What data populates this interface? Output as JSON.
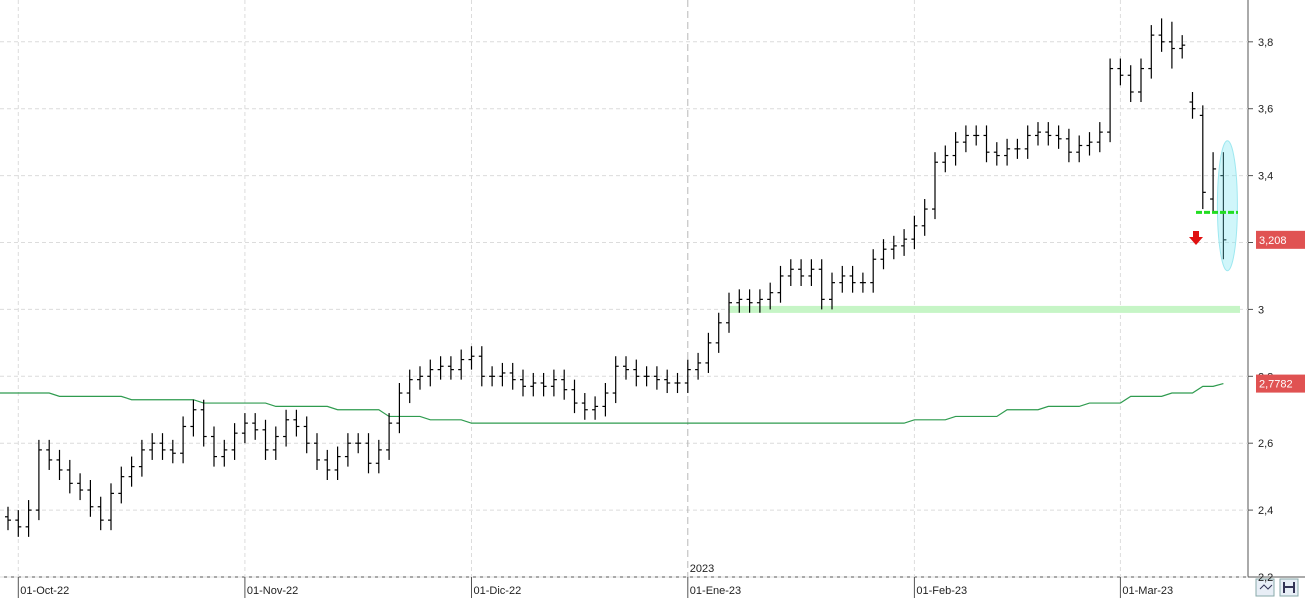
{
  "chart_data": {
    "type": "ohlc",
    "categories": [
      null,
      "01-Oct-22",
      null,
      null,
      null,
      null,
      null,
      null,
      null,
      null,
      null,
      null,
      null,
      null,
      null,
      null,
      null,
      null,
      null,
      null,
      null,
      null,
      null,
      "01-Nov-22",
      null,
      null,
      null,
      null,
      null,
      null,
      null,
      null,
      null,
      null,
      null,
      null,
      null,
      null,
      null,
      null,
      null,
      null,
      null,
      null,
      null,
      "01-Dic-22",
      null,
      null,
      null,
      null,
      null,
      null,
      null,
      null,
      null,
      null,
      null,
      null,
      null,
      null,
      null,
      null,
      null,
      null,
      null,
      null,
      "01-Ene-23",
      null,
      null,
      null,
      null,
      null,
      null,
      null,
      null,
      null,
      null,
      null,
      null,
      null,
      null,
      null,
      null,
      null,
      null,
      null,
      null,
      null,
      "01-Feb-23",
      null,
      null,
      null,
      null,
      null,
      null,
      null,
      null,
      null,
      null,
      null,
      null,
      null,
      null,
      null,
      null,
      null,
      null,
      null,
      "01-Mar-23",
      null,
      null,
      null,
      null,
      null,
      null,
      null,
      null,
      null,
      null
    ],
    "open": [
      2.38,
      2.37,
      2.35,
      2.4,
      2.58,
      2.55,
      2.52,
      2.48,
      2.46,
      2.41,
      2.37,
      2.45,
      2.5,
      2.53,
      2.58,
      2.6,
      2.58,
      2.57,
      2.65,
      2.7,
      2.62,
      2.56,
      2.58,
      2.63,
      2.66,
      2.64,
      2.58,
      2.62,
      2.67,
      2.65,
      2.6,
      2.55,
      2.52,
      2.56,
      2.6,
      2.6,
      2.54,
      2.58,
      2.66,
      2.75,
      2.79,
      2.8,
      2.82,
      2.83,
      2.82,
      2.85,
      2.86,
      2.8,
      2.8,
      2.81,
      2.79,
      2.77,
      2.78,
      2.77,
      2.79,
      2.76,
      2.72,
      2.7,
      2.71,
      2.75,
      2.83,
      2.82,
      2.8,
      2.8,
      2.79,
      2.78,
      2.78,
      2.82,
      2.84,
      2.9,
      2.96,
      3.02,
      3.03,
      3.02,
      3.03,
      3.05,
      3.1,
      3.12,
      3.1,
      3.12,
      3.03,
      3.08,
      3.1,
      3.08,
      3.08,
      3.15,
      3.18,
      3.19,
      3.21,
      3.25,
      3.3,
      3.44,
      3.46,
      3.5,
      3.52,
      3.52,
      3.47,
      3.46,
      3.48,
      3.48,
      3.52,
      3.53,
      3.52,
      3.51,
      3.47,
      3.49,
      3.5,
      3.53,
      3.72,
      3.7,
      3.65,
      3.72,
      3.82,
      3.8,
      3.78,
      3.62,
      3.58,
      3.33,
      3.4
    ],
    "high": [
      2.41,
      2.4,
      2.43,
      2.61,
      2.61,
      2.58,
      2.55,
      2.51,
      2.49,
      2.44,
      2.48,
      2.53,
      2.56,
      2.61,
      2.63,
      2.63,
      2.61,
      2.68,
      2.73,
      2.73,
      2.65,
      2.61,
      2.66,
      2.69,
      2.69,
      2.67,
      2.65,
      2.7,
      2.7,
      2.68,
      2.63,
      2.58,
      2.59,
      2.63,
      2.63,
      2.63,
      2.61,
      2.69,
      2.78,
      2.82,
      2.83,
      2.85,
      2.86,
      2.86,
      2.88,
      2.89,
      2.89,
      2.83,
      2.84,
      2.84,
      2.82,
      2.81,
      2.81,
      2.82,
      2.82,
      2.79,
      2.75,
      2.74,
      2.78,
      2.86,
      2.86,
      2.85,
      2.83,
      2.83,
      2.82,
      2.81,
      2.85,
      2.87,
      2.93,
      2.99,
      3.05,
      3.06,
      3.06,
      3.06,
      3.08,
      3.13,
      3.15,
      3.15,
      3.15,
      3.15,
      3.11,
      3.13,
      3.13,
      3.11,
      3.18,
      3.21,
      3.22,
      3.24,
      3.28,
      3.33,
      3.47,
      3.49,
      3.53,
      3.55,
      3.55,
      3.55,
      3.5,
      3.51,
      3.51,
      3.55,
      3.56,
      3.56,
      3.55,
      3.54,
      3.52,
      3.53,
      3.56,
      3.75,
      3.75,
      3.73,
      3.75,
      3.85,
      3.87,
      3.86,
      3.82,
      3.65,
      3.61,
      3.47,
      3.47
    ],
    "low": [
      2.34,
      2.32,
      2.32,
      2.37,
      2.52,
      2.49,
      2.45,
      2.43,
      2.38,
      2.34,
      2.34,
      2.42,
      2.47,
      2.5,
      2.55,
      2.55,
      2.54,
      2.54,
      2.62,
      2.59,
      2.53,
      2.53,
      2.55,
      2.6,
      2.61,
      2.55,
      2.55,
      2.59,
      2.62,
      2.57,
      2.52,
      2.49,
      2.49,
      2.53,
      2.57,
      2.51,
      2.51,
      2.55,
      2.63,
      2.72,
      2.76,
      2.77,
      2.79,
      2.79,
      2.79,
      2.82,
      2.77,
      2.77,
      2.77,
      2.76,
      2.74,
      2.74,
      2.74,
      2.74,
      2.73,
      2.69,
      2.67,
      2.67,
      2.68,
      2.72,
      2.79,
      2.77,
      2.77,
      2.76,
      2.75,
      2.75,
      2.75,
      2.79,
      2.81,
      2.87,
      2.93,
      2.99,
      2.99,
      2.99,
      3.0,
      3.02,
      3.07,
      3.07,
      3.07,
      3.0,
      3.0,
      3.05,
      3.05,
      3.05,
      3.05,
      3.12,
      3.15,
      3.16,
      3.18,
      3.22,
      3.27,
      3.41,
      3.43,
      3.47,
      3.49,
      3.44,
      3.43,
      3.43,
      3.45,
      3.45,
      3.49,
      3.49,
      3.48,
      3.44,
      3.44,
      3.46,
      3.47,
      3.5,
      3.67,
      3.62,
      3.62,
      3.69,
      3.77,
      3.72,
      3.75,
      3.57,
      3.3,
      3.29,
      3.15
    ],
    "close": [
      2.37,
      2.35,
      2.4,
      2.58,
      2.55,
      2.52,
      2.48,
      2.46,
      2.41,
      2.37,
      2.45,
      2.5,
      2.53,
      2.58,
      2.6,
      2.58,
      2.57,
      2.65,
      2.7,
      2.62,
      2.56,
      2.58,
      2.63,
      2.66,
      2.64,
      2.58,
      2.62,
      2.67,
      2.65,
      2.6,
      2.55,
      2.52,
      2.56,
      2.6,
      2.6,
      2.54,
      2.58,
      2.66,
      2.75,
      2.79,
      2.8,
      2.82,
      2.83,
      2.82,
      2.85,
      2.86,
      2.8,
      2.8,
      2.81,
      2.79,
      2.77,
      2.78,
      2.77,
      2.79,
      2.76,
      2.72,
      2.7,
      2.71,
      2.75,
      2.83,
      2.82,
      2.8,
      2.8,
      2.79,
      2.78,
      2.78,
      2.82,
      2.84,
      2.9,
      2.96,
      3.02,
      3.03,
      3.02,
      3.03,
      3.05,
      3.1,
      3.12,
      3.1,
      3.12,
      3.03,
      3.08,
      3.1,
      3.08,
      3.08,
      3.15,
      3.18,
      3.19,
      3.21,
      3.25,
      3.3,
      3.44,
      3.46,
      3.5,
      3.52,
      3.52,
      3.47,
      3.46,
      3.48,
      3.48,
      3.52,
      3.53,
      3.52,
      3.51,
      3.47,
      3.49,
      3.5,
      3.53,
      3.72,
      3.7,
      3.65,
      3.72,
      3.82,
      3.8,
      3.78,
      3.79,
      3.6,
      3.35,
      3.42,
      3.208
    ],
    "bar_color": "#000000",
    "moving_average": {
      "color": "#2f9b4f",
      "values": [
        2.75,
        2.75,
        2.75,
        2.75,
        2.75,
        2.74,
        2.74,
        2.74,
        2.74,
        2.74,
        2.74,
        2.74,
        2.73,
        2.73,
        2.73,
        2.73,
        2.73,
        2.73,
        2.73,
        2.72,
        2.72,
        2.72,
        2.72,
        2.72,
        2.72,
        2.72,
        2.71,
        2.71,
        2.71,
        2.71,
        2.71,
        2.71,
        2.7,
        2.7,
        2.7,
        2.7,
        2.7,
        2.68,
        2.68,
        2.68,
        2.68,
        2.67,
        2.67,
        2.67,
        2.67,
        2.66,
        2.66,
        2.66,
        2.66,
        2.66,
        2.66,
        2.66,
        2.66,
        2.66,
        2.66,
        2.66,
        2.66,
        2.66,
        2.66,
        2.66,
        2.66,
        2.66,
        2.66,
        2.66,
        2.66,
        2.66,
        2.66,
        2.66,
        2.66,
        2.66,
        2.66,
        2.66,
        2.66,
        2.66,
        2.66,
        2.66,
        2.66,
        2.66,
        2.66,
        2.66,
        2.66,
        2.66,
        2.66,
        2.66,
        2.66,
        2.66,
        2.66,
        2.66,
        2.67,
        2.67,
        2.67,
        2.67,
        2.68,
        2.68,
        2.68,
        2.68,
        2.68,
        2.7,
        2.7,
        2.7,
        2.7,
        2.71,
        2.71,
        2.71,
        2.71,
        2.72,
        2.72,
        2.72,
        2.72,
        2.74,
        2.74,
        2.74,
        2.74,
        2.75,
        2.75,
        2.75,
        2.77,
        2.77,
        2.7782
      ]
    },
    "support_level": 3.0,
    "signal_level": 3.29,
    "price_labels": [
      {
        "value": 3.208,
        "label": "3,208",
        "color": "#e05252"
      },
      {
        "value": 2.7782,
        "label": "2,7782",
        "color": "#e05252"
      }
    ],
    "annotations": [
      "2023"
    ],
    "ylim": [
      2.2,
      3.925
    ],
    "yticks": [
      {
        "value": 2.2,
        "label": "2,2"
      },
      {
        "value": 2.4,
        "label": "2,4"
      },
      {
        "value": 2.6,
        "label": "2,6"
      },
      {
        "value": 2.8,
        "label": "2,8"
      },
      3,
      {
        "value": 3.2,
        "label": "3,2"
      },
      {
        "value": 3.4,
        "label": "3,4"
      },
      {
        "value": 3.6,
        "label": "3,6"
      },
      {
        "value": 3.8,
        "label": "3,8"
      }
    ],
    "grid": true
  }
}
